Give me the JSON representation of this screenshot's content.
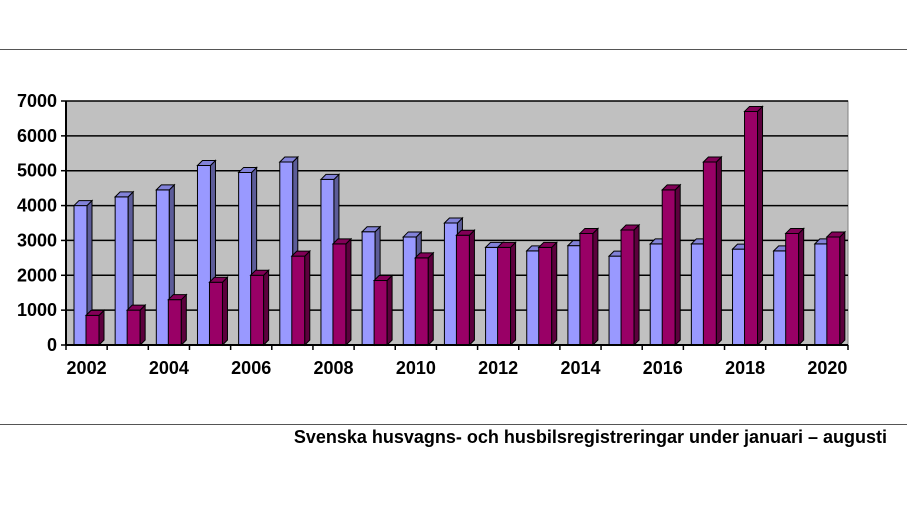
{
  "caption": "Svenska husvagns- och husbilsregistreringar under januari – augusti",
  "colors": {
    "plot_background": "#c0c0c0",
    "series_1": "#9999ff",
    "series_2": "#990066",
    "gridline": "#000000"
  },
  "chart_data": {
    "type": "bar",
    "title": "",
    "xlabel": "",
    "ylabel": "",
    "ylim": [
      0,
      7000
    ],
    "yticks": [
      0,
      1000,
      2000,
      3000,
      4000,
      5000,
      6000,
      7000
    ],
    "grid": true,
    "legend": "none",
    "style": "3d-columns",
    "categories": [
      "2002",
      "2003",
      "2004",
      "2005",
      "2006",
      "2007",
      "2008",
      "2009",
      "2010",
      "2011",
      "2012",
      "2013",
      "2014",
      "2015",
      "2016",
      "2017",
      "2018",
      "2019",
      "2020"
    ],
    "xtick_labels": [
      "2002",
      "2004",
      "2006",
      "2008",
      "2010",
      "2012",
      "2014",
      "2016",
      "2018",
      "2020"
    ],
    "series": [
      {
        "color": "#9999ff",
        "values": [
          4000,
          4250,
          4450,
          5150,
          4950,
          5250,
          4750,
          3250,
          3100,
          3500,
          2800,
          2700,
          2850,
          2550,
          2900,
          2900,
          2750,
          2700,
          2900
        ]
      },
      {
        "color": "#990066",
        "values": [
          850,
          1000,
          1300,
          1800,
          2000,
          2550,
          2900,
          1850,
          2500,
          3150,
          2800,
          2800,
          3200,
          3300,
          4450,
          5250,
          6700,
          3200,
          3100
        ]
      }
    ]
  }
}
